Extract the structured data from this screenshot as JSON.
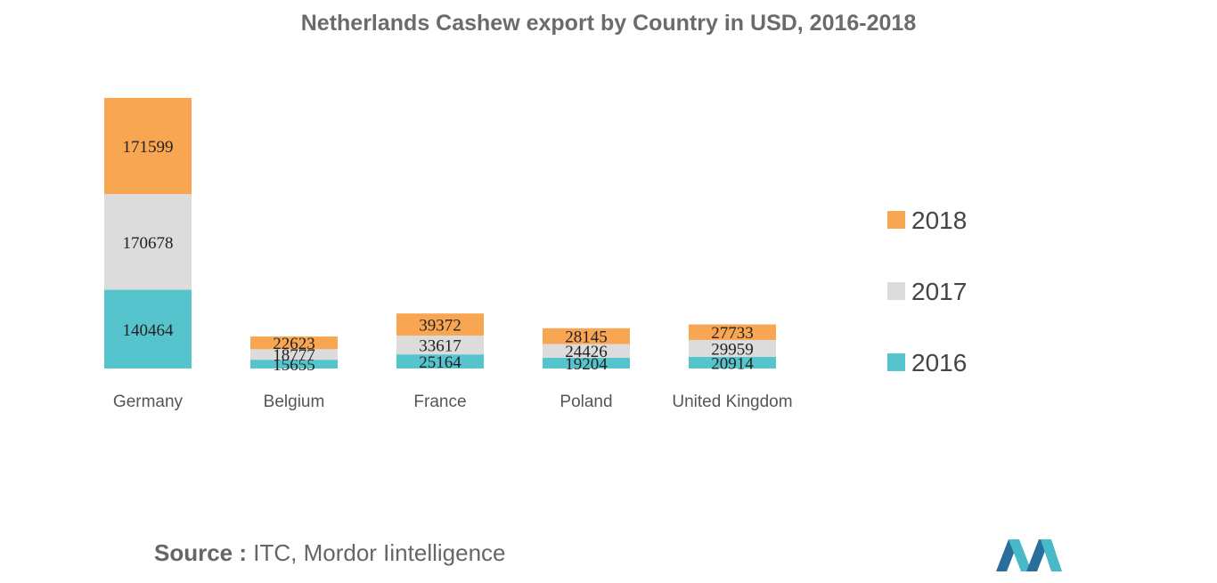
{
  "title": "Netherlands Cashew export by Country in USD, 2016-2018",
  "source": {
    "label": "Source :",
    "text": "ITC, Mordor Iintelligence"
  },
  "colors": {
    "2016": "#56c4cc",
    "2017": "#dcdcdc",
    "2018": "#f9a653"
  },
  "chart_data": {
    "type": "bar",
    "stacked": true,
    "title": "Netherlands Cashew export by Country in USD, 2016-2018",
    "categories": [
      "Germany",
      "Belgium",
      "France",
      "Poland",
      "United Kingdom"
    ],
    "series": [
      {
        "name": "2016",
        "values": [
          140464,
          15655,
          25164,
          19204,
          20914
        ]
      },
      {
        "name": "2017",
        "values": [
          170678,
          18777,
          33617,
          24426,
          29959
        ]
      },
      {
        "name": "2018",
        "values": [
          171599,
          22623,
          39372,
          28145,
          27733
        ]
      }
    ],
    "legend_position": "right",
    "legend_order": [
      "2018",
      "2017",
      "2016"
    ],
    "grid": false,
    "data_labels": true
  }
}
